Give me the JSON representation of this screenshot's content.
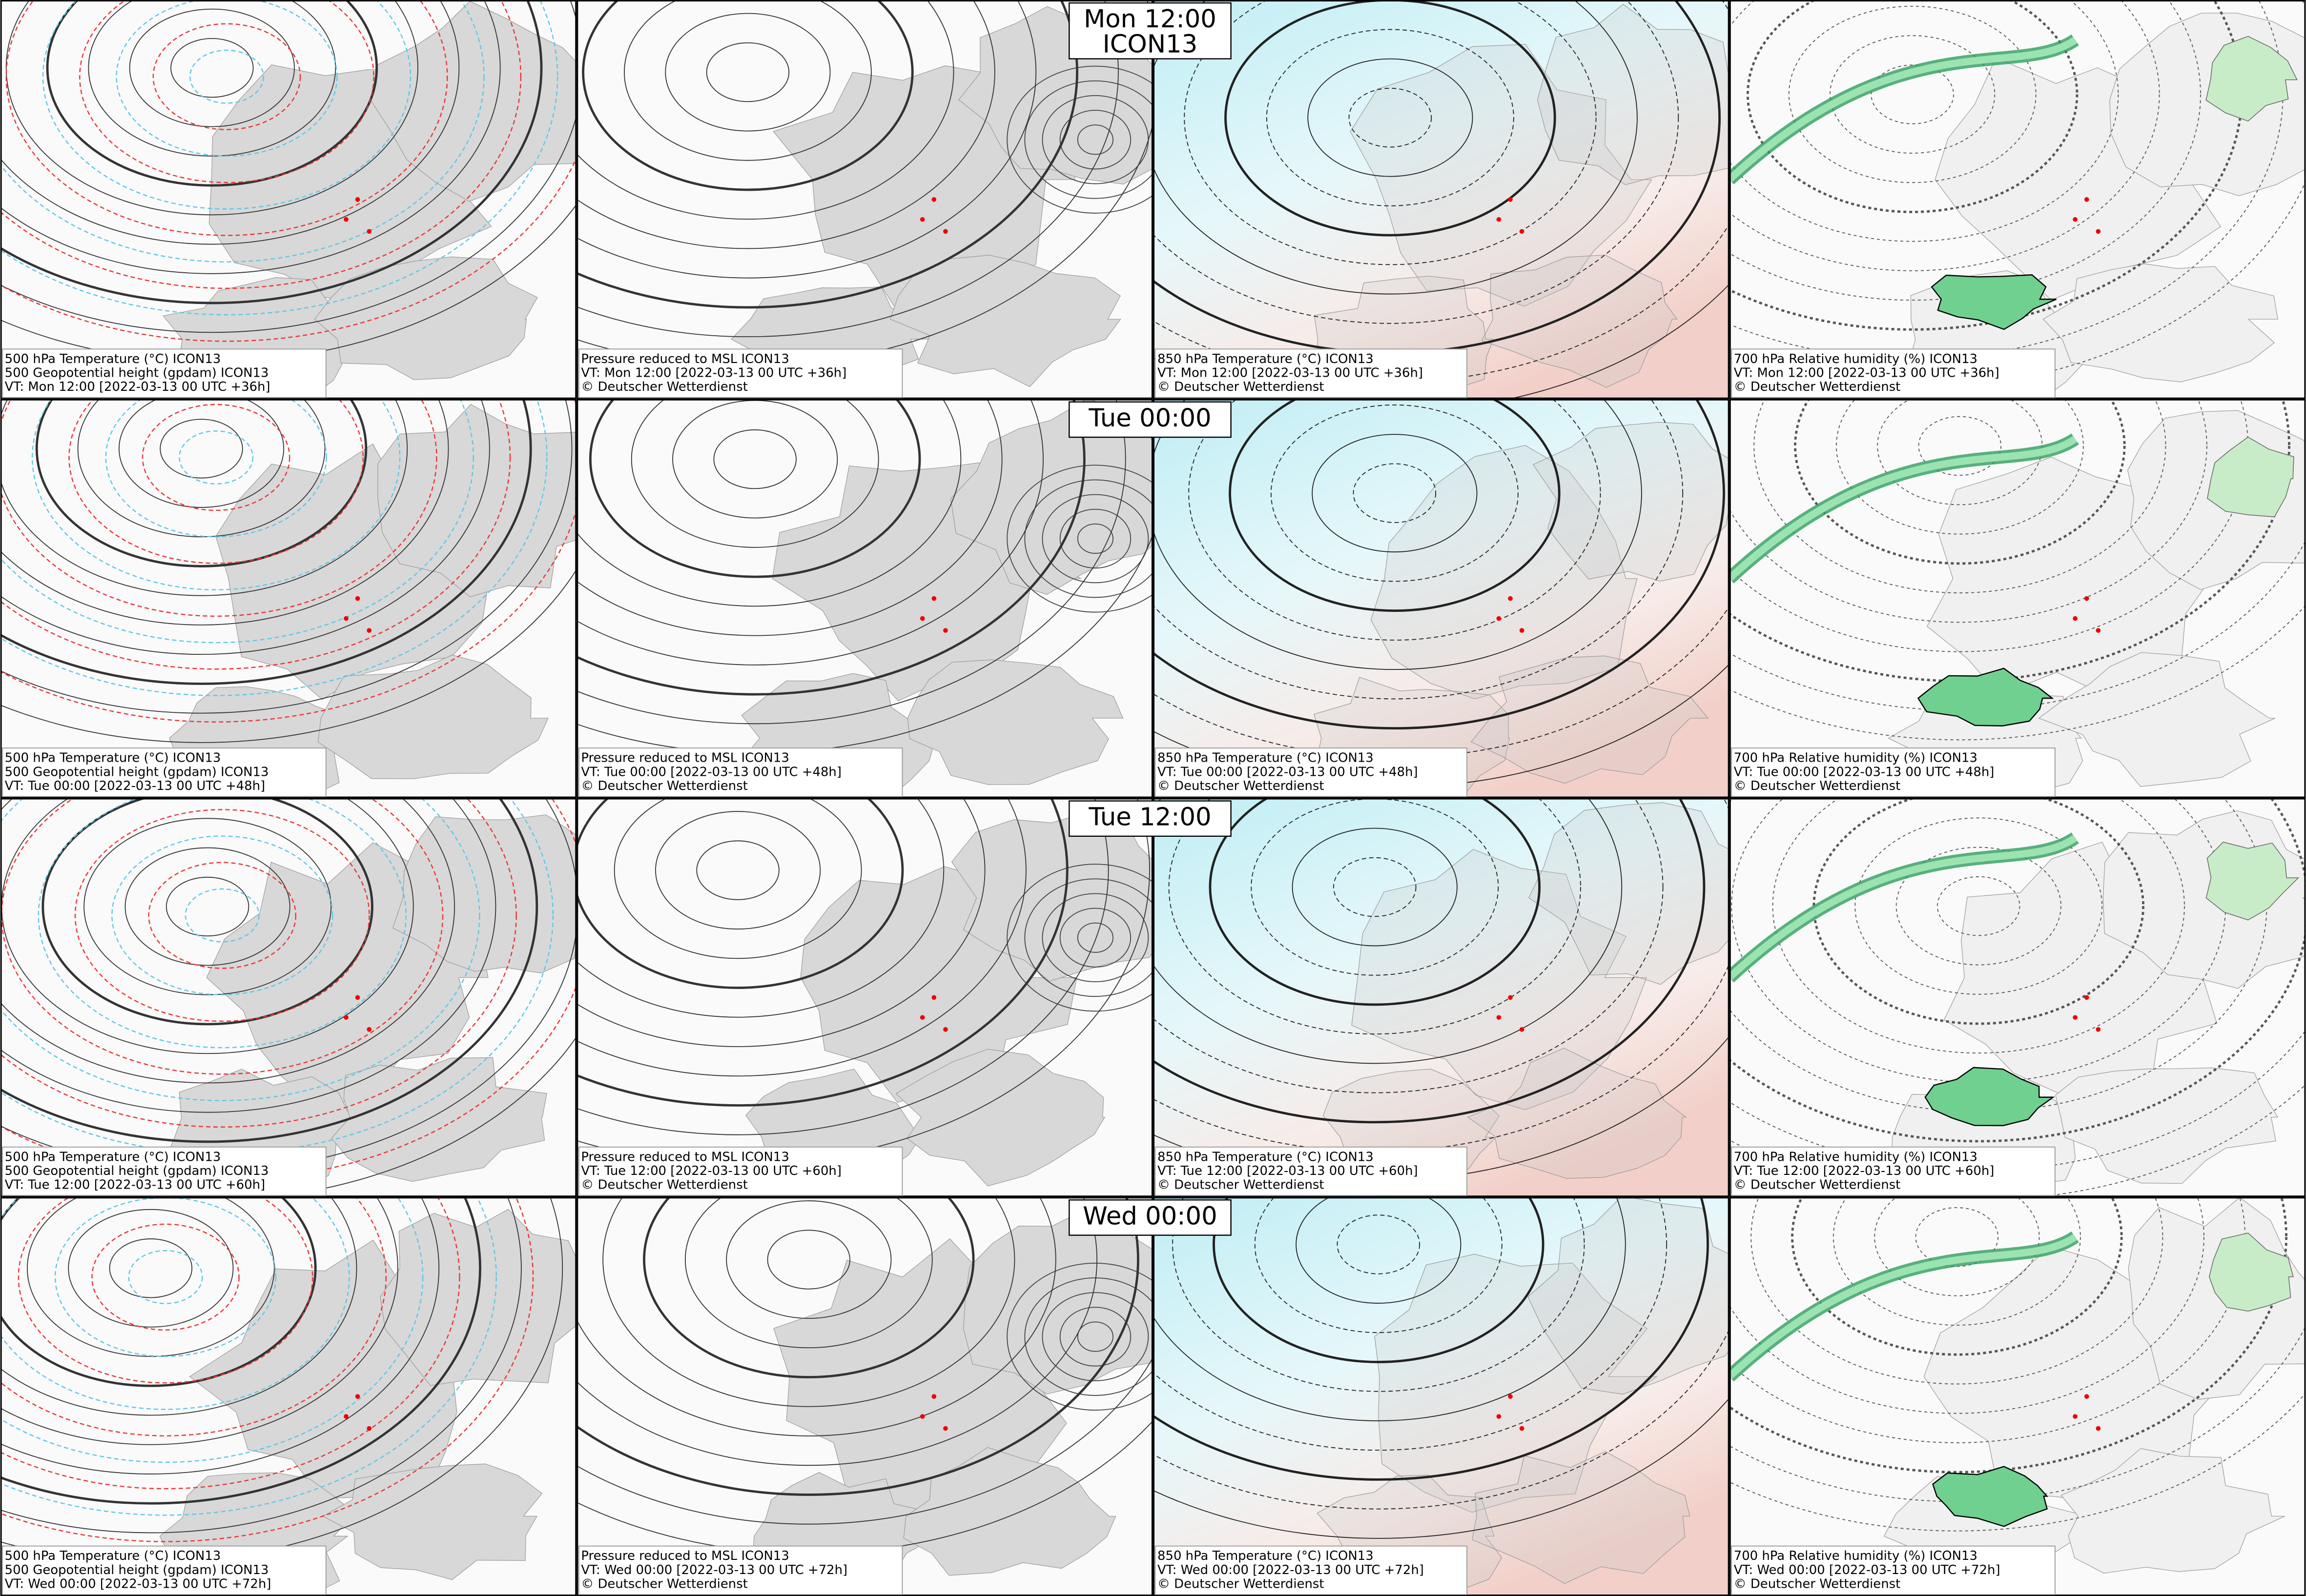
{
  "headers": [
    {
      "lines": [
        "Mon 12:00",
        "ICON13"
      ]
    },
    {
      "lines": [
        "Tue 00:00"
      ]
    },
    {
      "lines": [
        "Tue 12:00"
      ]
    },
    {
      "lines": [
        "Wed 00:00"
      ]
    }
  ],
  "rows": [
    {
      "panels": [
        {
          "caption": [
            "500 hPa Temperature (°C) ICON13",
            "500 Geopotential height (gpdam) ICON13",
            "VT: Mon 12:00 [2022-03-13 00 UTC +36h]"
          ]
        },
        {
          "caption": [
            "Pressure reduced to MSL ICON13",
            "VT: Mon 12:00 [2022-03-13 00 UTC +36h]",
            "© Deutscher Wetterdienst"
          ]
        },
        {
          "caption": [
            "850 hPa Temperature (°C) ICON13",
            "VT: Mon 12:00 [2022-03-13 00 UTC +36h]",
            "© Deutscher Wetterdienst"
          ]
        },
        {
          "caption": [
            "700 hPa Relative humidity (%) ICON13",
            "VT: Mon 12:00 [2022-03-13 00 UTC +36h]",
            "© Deutscher Wetterdienst"
          ]
        }
      ]
    },
    {
      "panels": [
        {
          "caption": [
            "500 hPa Temperature (°C) ICON13",
            "500 Geopotential height (gpdam) ICON13",
            "VT: Tue 00:00 [2022-03-13 00 UTC +48h]"
          ]
        },
        {
          "caption": [
            "Pressure reduced to MSL ICON13",
            "VT: Tue 00:00 [2022-03-13 00 UTC +48h]",
            "© Deutscher Wetterdienst"
          ]
        },
        {
          "caption": [
            "850 hPa Temperature (°C) ICON13",
            "VT: Tue 00:00 [2022-03-13 00 UTC +48h]",
            "© Deutscher Wetterdienst"
          ]
        },
        {
          "caption": [
            "700 hPa Relative humidity (%) ICON13",
            "VT: Tue 00:00 [2022-03-13 00 UTC +48h]",
            "© Deutscher Wetterdienst"
          ]
        }
      ]
    },
    {
      "panels": [
        {
          "caption": [
            "500 hPa Temperature (°C) ICON13",
            "500 Geopotential height (gpdam) ICON13",
            "VT: Tue 12:00 [2022-03-13 00 UTC +60h]"
          ]
        },
        {
          "caption": [
            "Pressure reduced to MSL ICON13",
            "VT: Tue 12:00 [2022-03-13 00 UTC +60h]",
            "© Deutscher Wetterdienst"
          ]
        },
        {
          "caption": [
            "850 hPa Temperature (°C) ICON13",
            "VT: Tue 12:00 [2022-03-13 00 UTC +60h]",
            "© Deutscher Wetterdienst"
          ]
        },
        {
          "caption": [
            "700 hPa Relative humidity (%) ICON13",
            "VT: Tue 12:00 [2022-03-13 00 UTC +60h]",
            "© Deutscher Wetterdienst"
          ]
        }
      ]
    },
    {
      "panels": [
        {
          "caption": [
            "500 hPa Temperature (°C) ICON13",
            "500 Geopotential height (gpdam) ICON13",
            "VT: Wed 00:00 [2022-03-13 00 UTC +72h]"
          ]
        },
        {
          "caption": [
            "Pressure reduced to MSL ICON13",
            "VT: Wed 00:00 [2022-03-13 00 UTC +72h]",
            "© Deutscher Wetterdienst"
          ]
        },
        {
          "caption": [
            "850 hPa Temperature (°C) ICON13",
            "VT: Wed 00:00 [2022-03-13 00 UTC +72h]",
            "© Deutscher Wetterdienst"
          ]
        },
        {
          "caption": [
            "700 hPa Relative humidity (%) ICON13",
            "VT: Wed 00:00 [2022-03-13 00 UTC +72h]",
            "© Deutscher Wetterdienst"
          ]
        }
      ]
    }
  ]
}
